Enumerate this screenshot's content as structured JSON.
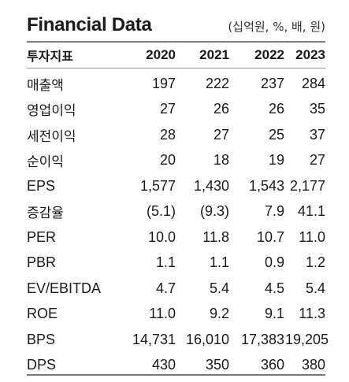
{
  "title": "Financial Data",
  "unit": "(십억원, %, 배, 원)",
  "header": {
    "label": "투자지표",
    "years": [
      "2020",
      "2021",
      "2022",
      "2023"
    ]
  },
  "rows": [
    {
      "label": "매출액",
      "values": [
        "197",
        "222",
        "237",
        "284"
      ]
    },
    {
      "label": "영업이익",
      "values": [
        "27",
        "26",
        "26",
        "35"
      ]
    },
    {
      "label": "세전이익",
      "values": [
        "28",
        "27",
        "25",
        "37"
      ]
    },
    {
      "label": "순이익",
      "values": [
        "20",
        "18",
        "19",
        "27"
      ]
    },
    {
      "label": "EPS",
      "values": [
        "1,577",
        "1,430",
        "1,543",
        "2,177"
      ]
    },
    {
      "label": "증감율",
      "values": [
        "(5.1)",
        "(9.3)",
        "7.9",
        "41.1"
      ]
    },
    {
      "label": "PER",
      "values": [
        "10.0",
        "11.8",
        "10.7",
        "11.0"
      ]
    },
    {
      "label": "PBR",
      "values": [
        "1.1",
        "1.1",
        "0.9",
        "1.2"
      ]
    },
    {
      "label": "EV/EBITDA",
      "values": [
        "4.7",
        "5.4",
        "4.5",
        "5.4"
      ]
    },
    {
      "label": "ROE",
      "values": [
        "11.0",
        "9.2",
        "9.1",
        "11.3"
      ]
    },
    {
      "label": "BPS",
      "values": [
        "14,731",
        "16,010",
        "17,383",
        "19,205"
      ]
    },
    {
      "label": "DPS",
      "values": [
        "430",
        "350",
        "360",
        "380"
      ]
    }
  ]
}
